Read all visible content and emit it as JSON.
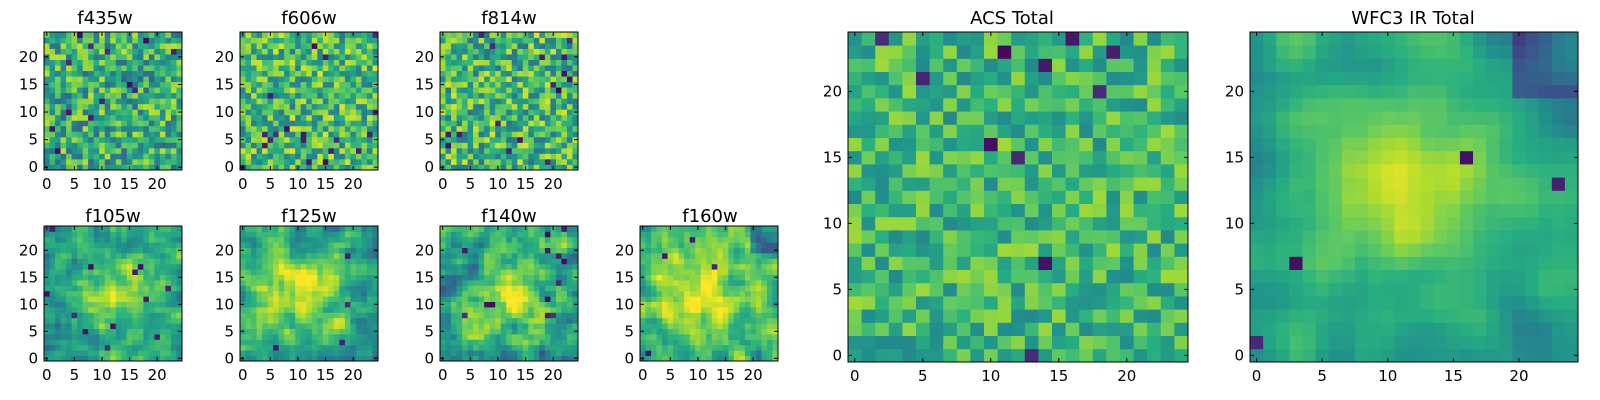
{
  "palette": {
    "colormap": "viridis",
    "stops": [
      "#440154",
      "#472d7b",
      "#3b528b",
      "#2c728e",
      "#21918c",
      "#28ae80",
      "#5ec962",
      "#addc30",
      "#fde725"
    ],
    "frame": "#000000",
    "background": "#ffffff"
  },
  "chart_data": [
    {
      "type": "heatmap",
      "title": "f435w",
      "grid": [
        25,
        25
      ],
      "value_range": [
        0,
        1
      ],
      "contrast": 0.95,
      "seed": 11,
      "smooth": 0,
      "base": 0.62,
      "outlier_rate": 0.03,
      "hotspot": null,
      "dark_corner": false,
      "xticks": [
        0,
        5,
        10,
        15,
        20
      ],
      "yticks": [
        0,
        5,
        10,
        15,
        20
      ],
      "xlim": [
        -0.5,
        24.5
      ],
      "ylim": [
        -0.5,
        24.5
      ]
    },
    {
      "type": "heatmap",
      "title": "f606w",
      "grid": [
        25,
        25
      ],
      "value_range": [
        0,
        1
      ],
      "contrast": 0.9,
      "seed": 23,
      "smooth": 0,
      "base": 0.68,
      "outlier_rate": 0.025,
      "hotspot": null,
      "dark_corner": false,
      "xticks": [
        0,
        5,
        10,
        15,
        20
      ],
      "yticks": [
        0,
        5,
        10,
        15,
        20
      ],
      "xlim": [
        -0.5,
        24.5
      ],
      "ylim": [
        -0.5,
        24.5
      ]
    },
    {
      "type": "heatmap",
      "title": "f814w",
      "grid": [
        25,
        25
      ],
      "value_range": [
        0,
        1
      ],
      "contrast": 0.95,
      "seed": 37,
      "smooth": 0,
      "base": 0.66,
      "outlier_rate": 0.03,
      "hotspot": null,
      "dark_corner": false,
      "xticks": [
        0,
        5,
        10,
        15,
        20
      ],
      "yticks": [
        0,
        5,
        10,
        15,
        20
      ],
      "xlim": [
        -0.5,
        24.5
      ],
      "ylim": [
        -0.5,
        24.5
      ]
    },
    {
      "type": "heatmap",
      "title": "f105w",
      "grid": [
        25,
        25
      ],
      "value_range": [
        0,
        1
      ],
      "contrast": 0.6,
      "seed": 41,
      "smooth": 1,
      "base": 0.55,
      "outlier_rate": 0.015,
      "hotspot": [
        13,
        12,
        7
      ],
      "dark_corner": false,
      "xticks": [
        0,
        5,
        10,
        15,
        20
      ],
      "yticks": [
        0,
        5,
        10,
        15,
        20
      ],
      "xlim": [
        -0.5,
        24.5
      ],
      "ylim": [
        -0.5,
        24.5
      ]
    },
    {
      "type": "heatmap",
      "title": "f125w",
      "grid": [
        25,
        25
      ],
      "value_range": [
        0,
        1
      ],
      "contrast": 0.6,
      "seed": 53,
      "smooth": 1,
      "base": 0.6,
      "outlier_rate": 0.01,
      "hotspot": [
        11,
        13,
        7
      ],
      "dark_corner": false,
      "xticks": [
        0,
        5,
        10,
        15,
        20
      ],
      "yticks": [
        0,
        5,
        10,
        15,
        20
      ],
      "xlim": [
        -0.5,
        24.5
      ],
      "ylim": [
        -0.5,
        24.5
      ]
    },
    {
      "type": "heatmap",
      "title": "f140w",
      "grid": [
        25,
        25
      ],
      "value_range": [
        0,
        1
      ],
      "contrast": 0.75,
      "seed": 67,
      "smooth": 1,
      "base": 0.6,
      "outlier_rate": 0.02,
      "hotspot": [
        12,
        12,
        6
      ],
      "dark_corner": false,
      "xticks": [
        0,
        5,
        10,
        15,
        20
      ],
      "yticks": [
        0,
        5,
        10,
        15,
        20
      ],
      "xlim": [
        -0.5,
        24.5
      ],
      "ylim": [
        -0.5,
        24.5
      ]
    },
    {
      "type": "heatmap",
      "title": "f160w",
      "grid": [
        25,
        25
      ],
      "value_range": [
        0,
        1
      ],
      "contrast": 0.6,
      "seed": 79,
      "smooth": 1,
      "base": 0.66,
      "outlier_rate": 0.01,
      "hotspot": [
        10,
        12,
        8
      ],
      "dark_corner": true,
      "xticks": [
        0,
        5,
        10,
        15,
        20
      ],
      "yticks": [
        0,
        5,
        10,
        15,
        20
      ],
      "xlim": [
        -0.5,
        24.5
      ],
      "ylim": [
        -0.5,
        24.5
      ]
    },
    {
      "type": "heatmap",
      "title": "ACS Total",
      "grid": [
        25,
        25
      ],
      "value_range": [
        0,
        1
      ],
      "contrast": 0.65,
      "seed": 97,
      "smooth": 0,
      "base": 0.66,
      "outlier_rate": 0.025,
      "hotspot": null,
      "dark_corner": false,
      "xticks": [
        0,
        5,
        10,
        15,
        20
      ],
      "yticks": [
        0,
        5,
        10,
        15,
        20
      ],
      "xlim": [
        -0.5,
        24.5
      ],
      "ylim": [
        -0.5,
        24.5
      ]
    },
    {
      "type": "heatmap",
      "title": "WFC3 IR Total",
      "grid": [
        25,
        25
      ],
      "value_range": [
        0,
        1
      ],
      "contrast": 0.55,
      "seed": 113,
      "smooth": 2,
      "base": 0.55,
      "outlier_rate": 0.008,
      "hotspot": [
        11,
        13,
        8
      ],
      "dark_corner": true,
      "xticks": [
        0,
        5,
        10,
        15,
        20
      ],
      "yticks": [
        0,
        5,
        10,
        15,
        20
      ],
      "xlim": [
        -0.5,
        24.5
      ],
      "ylim": [
        -0.5,
        24.5
      ]
    }
  ]
}
